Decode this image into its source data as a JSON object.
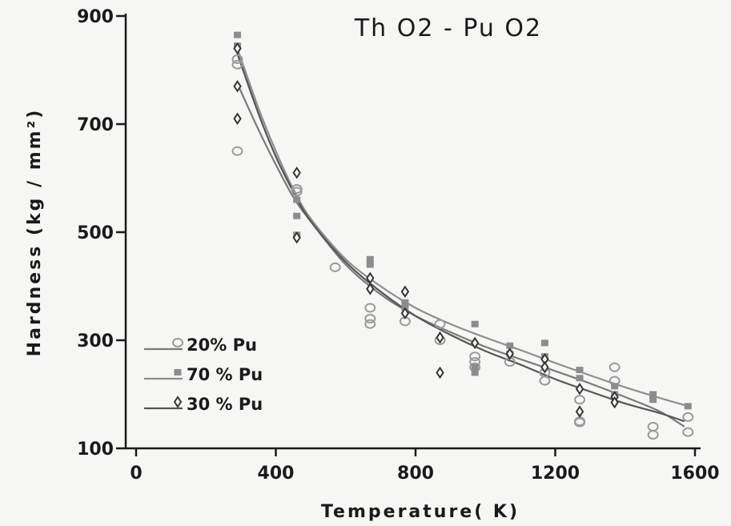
{
  "chart_data": {
    "type": "scatter",
    "title": "Th O2 - Pu O2",
    "xlabel": "Temperature( K)",
    "ylabel": "Hardness (kg / mm²)",
    "xlim": [
      0,
      1600
    ],
    "ylim": [
      100,
      900
    ],
    "xticks": [
      0,
      400,
      800,
      1200,
      1600
    ],
    "yticks": [
      100,
      300,
      500,
      700,
      900
    ],
    "grid": false,
    "legend_position": "bottom-left",
    "series": [
      {
        "name": "20% Pu",
        "marker": "circle",
        "color": "#9a9a9a",
        "points": [
          [
            290,
            820
          ],
          [
            290,
            810
          ],
          [
            290,
            650
          ],
          [
            460,
            580
          ],
          [
            460,
            575
          ],
          [
            570,
            435
          ],
          [
            670,
            360
          ],
          [
            670,
            340
          ],
          [
            670,
            330
          ],
          [
            770,
            335
          ],
          [
            870,
            330
          ],
          [
            870,
            300
          ],
          [
            970,
            270
          ],
          [
            970,
            260
          ],
          [
            970,
            250
          ],
          [
            1070,
            260
          ],
          [
            1170,
            240
          ],
          [
            1170,
            225
          ],
          [
            1270,
            190
          ],
          [
            1270,
            150
          ],
          [
            1270,
            148
          ],
          [
            1370,
            250
          ],
          [
            1370,
            225
          ],
          [
            1480,
            140
          ],
          [
            1480,
            125
          ],
          [
            1580,
            158
          ],
          [
            1580,
            130
          ]
        ],
        "curve": [
          [
            290,
            775
          ],
          [
            350,
            690
          ],
          [
            400,
            625
          ],
          [
            450,
            565
          ],
          [
            500,
            520
          ],
          [
            600,
            440
          ],
          [
            700,
            385
          ],
          [
            800,
            345
          ],
          [
            900,
            315
          ],
          [
            1000,
            288
          ],
          [
            1100,
            265
          ],
          [
            1200,
            243
          ],
          [
            1300,
            220
          ],
          [
            1400,
            195
          ],
          [
            1500,
            168
          ],
          [
            1570,
            140
          ]
        ]
      },
      {
        "name": "70 % Pu",
        "marker": "square",
        "color": "#8c8c8c",
        "points": [
          [
            290,
            865
          ],
          [
            290,
            845
          ],
          [
            460,
            560
          ],
          [
            460,
            530
          ],
          [
            460,
            495
          ],
          [
            670,
            450
          ],
          [
            670,
            440
          ],
          [
            770,
            370
          ],
          [
            770,
            360
          ],
          [
            970,
            330
          ],
          [
            970,
            250
          ],
          [
            970,
            240
          ],
          [
            1070,
            290
          ],
          [
            1070,
            275
          ],
          [
            1170,
            295
          ],
          [
            1170,
            270
          ],
          [
            1270,
            245
          ],
          [
            1270,
            230
          ],
          [
            1370,
            215
          ],
          [
            1370,
            200
          ],
          [
            1480,
            200
          ],
          [
            1480,
            190
          ],
          [
            1580,
            178
          ]
        ],
        "curve": [
          [
            290,
            840
          ],
          [
            350,
            730
          ],
          [
            400,
            650
          ],
          [
            450,
            580
          ],
          [
            500,
            525
          ],
          [
            600,
            450
          ],
          [
            700,
            400
          ],
          [
            800,
            360
          ],
          [
            900,
            330
          ],
          [
            1000,
            305
          ],
          [
            1100,
            282
          ],
          [
            1200,
            258
          ],
          [
            1300,
            235
          ],
          [
            1400,
            213
          ],
          [
            1500,
            193
          ],
          [
            1570,
            180
          ]
        ]
      },
      {
        "name": "30 % Pu",
        "marker": "diamond",
        "color": "#333333",
        "points": [
          [
            290,
            840
          ],
          [
            290,
            770
          ],
          [
            290,
            710
          ],
          [
            460,
            610
          ],
          [
            460,
            490
          ],
          [
            670,
            415
          ],
          [
            670,
            395
          ],
          [
            770,
            390
          ],
          [
            770,
            350
          ],
          [
            870,
            305
          ],
          [
            870,
            240
          ],
          [
            970,
            295
          ],
          [
            1070,
            275
          ],
          [
            1170,
            265
          ],
          [
            1170,
            250
          ],
          [
            1270,
            210
          ],
          [
            1270,
            168
          ],
          [
            1370,
            195
          ],
          [
            1370,
            185
          ]
        ],
        "curve": [
          [
            290,
            830
          ],
          [
            350,
            720
          ],
          [
            400,
            640
          ],
          [
            450,
            575
          ],
          [
            500,
            520
          ],
          [
            600,
            445
          ],
          [
            700,
            390
          ],
          [
            800,
            345
          ],
          [
            900,
            310
          ],
          [
            1000,
            280
          ],
          [
            1100,
            255
          ],
          [
            1200,
            228
          ],
          [
            1300,
            205
          ],
          [
            1400,
            183
          ],
          [
            1500,
            165
          ],
          [
            1570,
            150
          ]
        ]
      }
    ]
  }
}
